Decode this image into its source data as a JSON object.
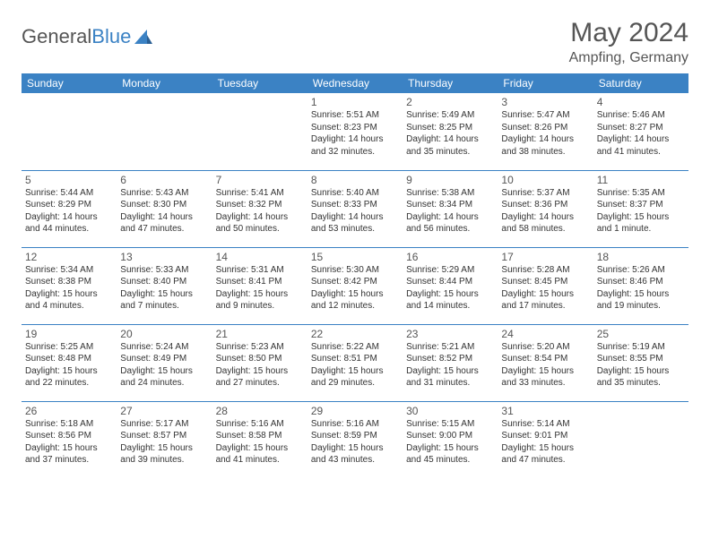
{
  "brand": {
    "part1": "General",
    "part2": "Blue"
  },
  "title": "May 2024",
  "location": "Ampfing, Germany",
  "header_bg": "#3b82c4",
  "header_fg": "#ffffff",
  "border_color": "#3b82c4",
  "text_color": "#333333",
  "muted_color": "#555555",
  "day_header_fontsize": 12,
  "daynum_fontsize": 12,
  "info_fontsize": 10,
  "days_of_week": [
    "Sunday",
    "Monday",
    "Tuesday",
    "Wednesday",
    "Thursday",
    "Friday",
    "Saturday"
  ],
  "weeks": [
    [
      null,
      null,
      null,
      {
        "n": "1",
        "sunrise": "5:51 AM",
        "sunset": "8:23 PM",
        "daylight": "14 hours and 32 minutes."
      },
      {
        "n": "2",
        "sunrise": "5:49 AM",
        "sunset": "8:25 PM",
        "daylight": "14 hours and 35 minutes."
      },
      {
        "n": "3",
        "sunrise": "5:47 AM",
        "sunset": "8:26 PM",
        "daylight": "14 hours and 38 minutes."
      },
      {
        "n": "4",
        "sunrise": "5:46 AM",
        "sunset": "8:27 PM",
        "daylight": "14 hours and 41 minutes."
      }
    ],
    [
      {
        "n": "5",
        "sunrise": "5:44 AM",
        "sunset": "8:29 PM",
        "daylight": "14 hours and 44 minutes."
      },
      {
        "n": "6",
        "sunrise": "5:43 AM",
        "sunset": "8:30 PM",
        "daylight": "14 hours and 47 minutes."
      },
      {
        "n": "7",
        "sunrise": "5:41 AM",
        "sunset": "8:32 PM",
        "daylight": "14 hours and 50 minutes."
      },
      {
        "n": "8",
        "sunrise": "5:40 AM",
        "sunset": "8:33 PM",
        "daylight": "14 hours and 53 minutes."
      },
      {
        "n": "9",
        "sunrise": "5:38 AM",
        "sunset": "8:34 PM",
        "daylight": "14 hours and 56 minutes."
      },
      {
        "n": "10",
        "sunrise": "5:37 AM",
        "sunset": "8:36 PM",
        "daylight": "14 hours and 58 minutes."
      },
      {
        "n": "11",
        "sunrise": "5:35 AM",
        "sunset": "8:37 PM",
        "daylight": "15 hours and 1 minute."
      }
    ],
    [
      {
        "n": "12",
        "sunrise": "5:34 AM",
        "sunset": "8:38 PM",
        "daylight": "15 hours and 4 minutes."
      },
      {
        "n": "13",
        "sunrise": "5:33 AM",
        "sunset": "8:40 PM",
        "daylight": "15 hours and 7 minutes."
      },
      {
        "n": "14",
        "sunrise": "5:31 AM",
        "sunset": "8:41 PM",
        "daylight": "15 hours and 9 minutes."
      },
      {
        "n": "15",
        "sunrise": "5:30 AM",
        "sunset": "8:42 PM",
        "daylight": "15 hours and 12 minutes."
      },
      {
        "n": "16",
        "sunrise": "5:29 AM",
        "sunset": "8:44 PM",
        "daylight": "15 hours and 14 minutes."
      },
      {
        "n": "17",
        "sunrise": "5:28 AM",
        "sunset": "8:45 PM",
        "daylight": "15 hours and 17 minutes."
      },
      {
        "n": "18",
        "sunrise": "5:26 AM",
        "sunset": "8:46 PM",
        "daylight": "15 hours and 19 minutes."
      }
    ],
    [
      {
        "n": "19",
        "sunrise": "5:25 AM",
        "sunset": "8:48 PM",
        "daylight": "15 hours and 22 minutes."
      },
      {
        "n": "20",
        "sunrise": "5:24 AM",
        "sunset": "8:49 PM",
        "daylight": "15 hours and 24 minutes."
      },
      {
        "n": "21",
        "sunrise": "5:23 AM",
        "sunset": "8:50 PM",
        "daylight": "15 hours and 27 minutes."
      },
      {
        "n": "22",
        "sunrise": "5:22 AM",
        "sunset": "8:51 PM",
        "daylight": "15 hours and 29 minutes."
      },
      {
        "n": "23",
        "sunrise": "5:21 AM",
        "sunset": "8:52 PM",
        "daylight": "15 hours and 31 minutes."
      },
      {
        "n": "24",
        "sunrise": "5:20 AM",
        "sunset": "8:54 PM",
        "daylight": "15 hours and 33 minutes."
      },
      {
        "n": "25",
        "sunrise": "5:19 AM",
        "sunset": "8:55 PM",
        "daylight": "15 hours and 35 minutes."
      }
    ],
    [
      {
        "n": "26",
        "sunrise": "5:18 AM",
        "sunset": "8:56 PM",
        "daylight": "15 hours and 37 minutes."
      },
      {
        "n": "27",
        "sunrise": "5:17 AM",
        "sunset": "8:57 PM",
        "daylight": "15 hours and 39 minutes."
      },
      {
        "n": "28",
        "sunrise": "5:16 AM",
        "sunset": "8:58 PM",
        "daylight": "15 hours and 41 minutes."
      },
      {
        "n": "29",
        "sunrise": "5:16 AM",
        "sunset": "8:59 PM",
        "daylight": "15 hours and 43 minutes."
      },
      {
        "n": "30",
        "sunrise": "5:15 AM",
        "sunset": "9:00 PM",
        "daylight": "15 hours and 45 minutes."
      },
      {
        "n": "31",
        "sunrise": "5:14 AM",
        "sunset": "9:01 PM",
        "daylight": "15 hours and 47 minutes."
      },
      null
    ]
  ],
  "labels": {
    "sunrise": "Sunrise:",
    "sunset": "Sunset:",
    "daylight": "Daylight:"
  }
}
